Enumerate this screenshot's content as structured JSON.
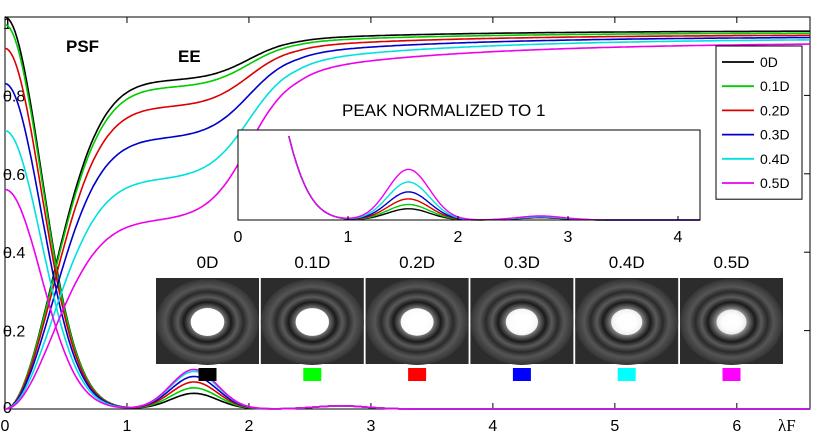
{
  "chart_data": {
    "type": "line",
    "x_unit_label": "λF",
    "xlim": [
      0,
      6.6
    ],
    "ylim": [
      0,
      1
    ],
    "x_ticks": [
      "0",
      "1",
      "2",
      "3",
      "4",
      "5",
      "6"
    ],
    "y_ticks": [
      "0",
      "0.2",
      "0.4",
      "0.6",
      "0.8",
      "1"
    ],
    "legend_position": "top-right",
    "annotations": {
      "psf": "PSF",
      "ee": "EE",
      "inset_title": "PEAK NORMALIZED TO 1"
    },
    "series": [
      {
        "name": "0D",
        "color": "#000000",
        "psf_peak": 1.0,
        "ee_plateau": 0.838,
        "ee_final": 0.965
      },
      {
        "name": "0.1D",
        "color": "#00cc00",
        "psf_peak": 0.98,
        "ee_plateau": 0.82,
        "ee_final": 0.96
      },
      {
        "name": "0.2D",
        "color": "#dd0000",
        "psf_peak": 0.92,
        "ee_plateau": 0.77,
        "ee_final": 0.955
      },
      {
        "name": "0.3D",
        "color": "#0000cc",
        "psf_peak": 0.83,
        "ee_plateau": 0.69,
        "ee_final": 0.95
      },
      {
        "name": "0.4D",
        "color": "#00e0e0",
        "psf_peak": 0.71,
        "ee_plateau": 0.585,
        "ee_final": 0.945
      },
      {
        "name": "0.5D",
        "color": "#ee00ee",
        "psf_peak": 0.56,
        "ee_plateau": 0.48,
        "ee_final": 0.935
      }
    ],
    "inset": {
      "xlim": [
        0,
        4.2
      ],
      "x_ticks": [
        "0",
        "1",
        "2",
        "3",
        "4"
      ],
      "secondary_peak": [
        0.04,
        0.055,
        0.075,
        0.1,
        0.135,
        0.18
      ]
    }
  },
  "thumbnails": {
    "labels": [
      "0D",
      "0.1D",
      "0.2D",
      "0.3D",
      "0.4D",
      "0.5D"
    ],
    "swatch_colors": [
      "#000000",
      "#00ff00",
      "#ff0000",
      "#0000ff",
      "#00ffff",
      "#ff00ff"
    ]
  }
}
